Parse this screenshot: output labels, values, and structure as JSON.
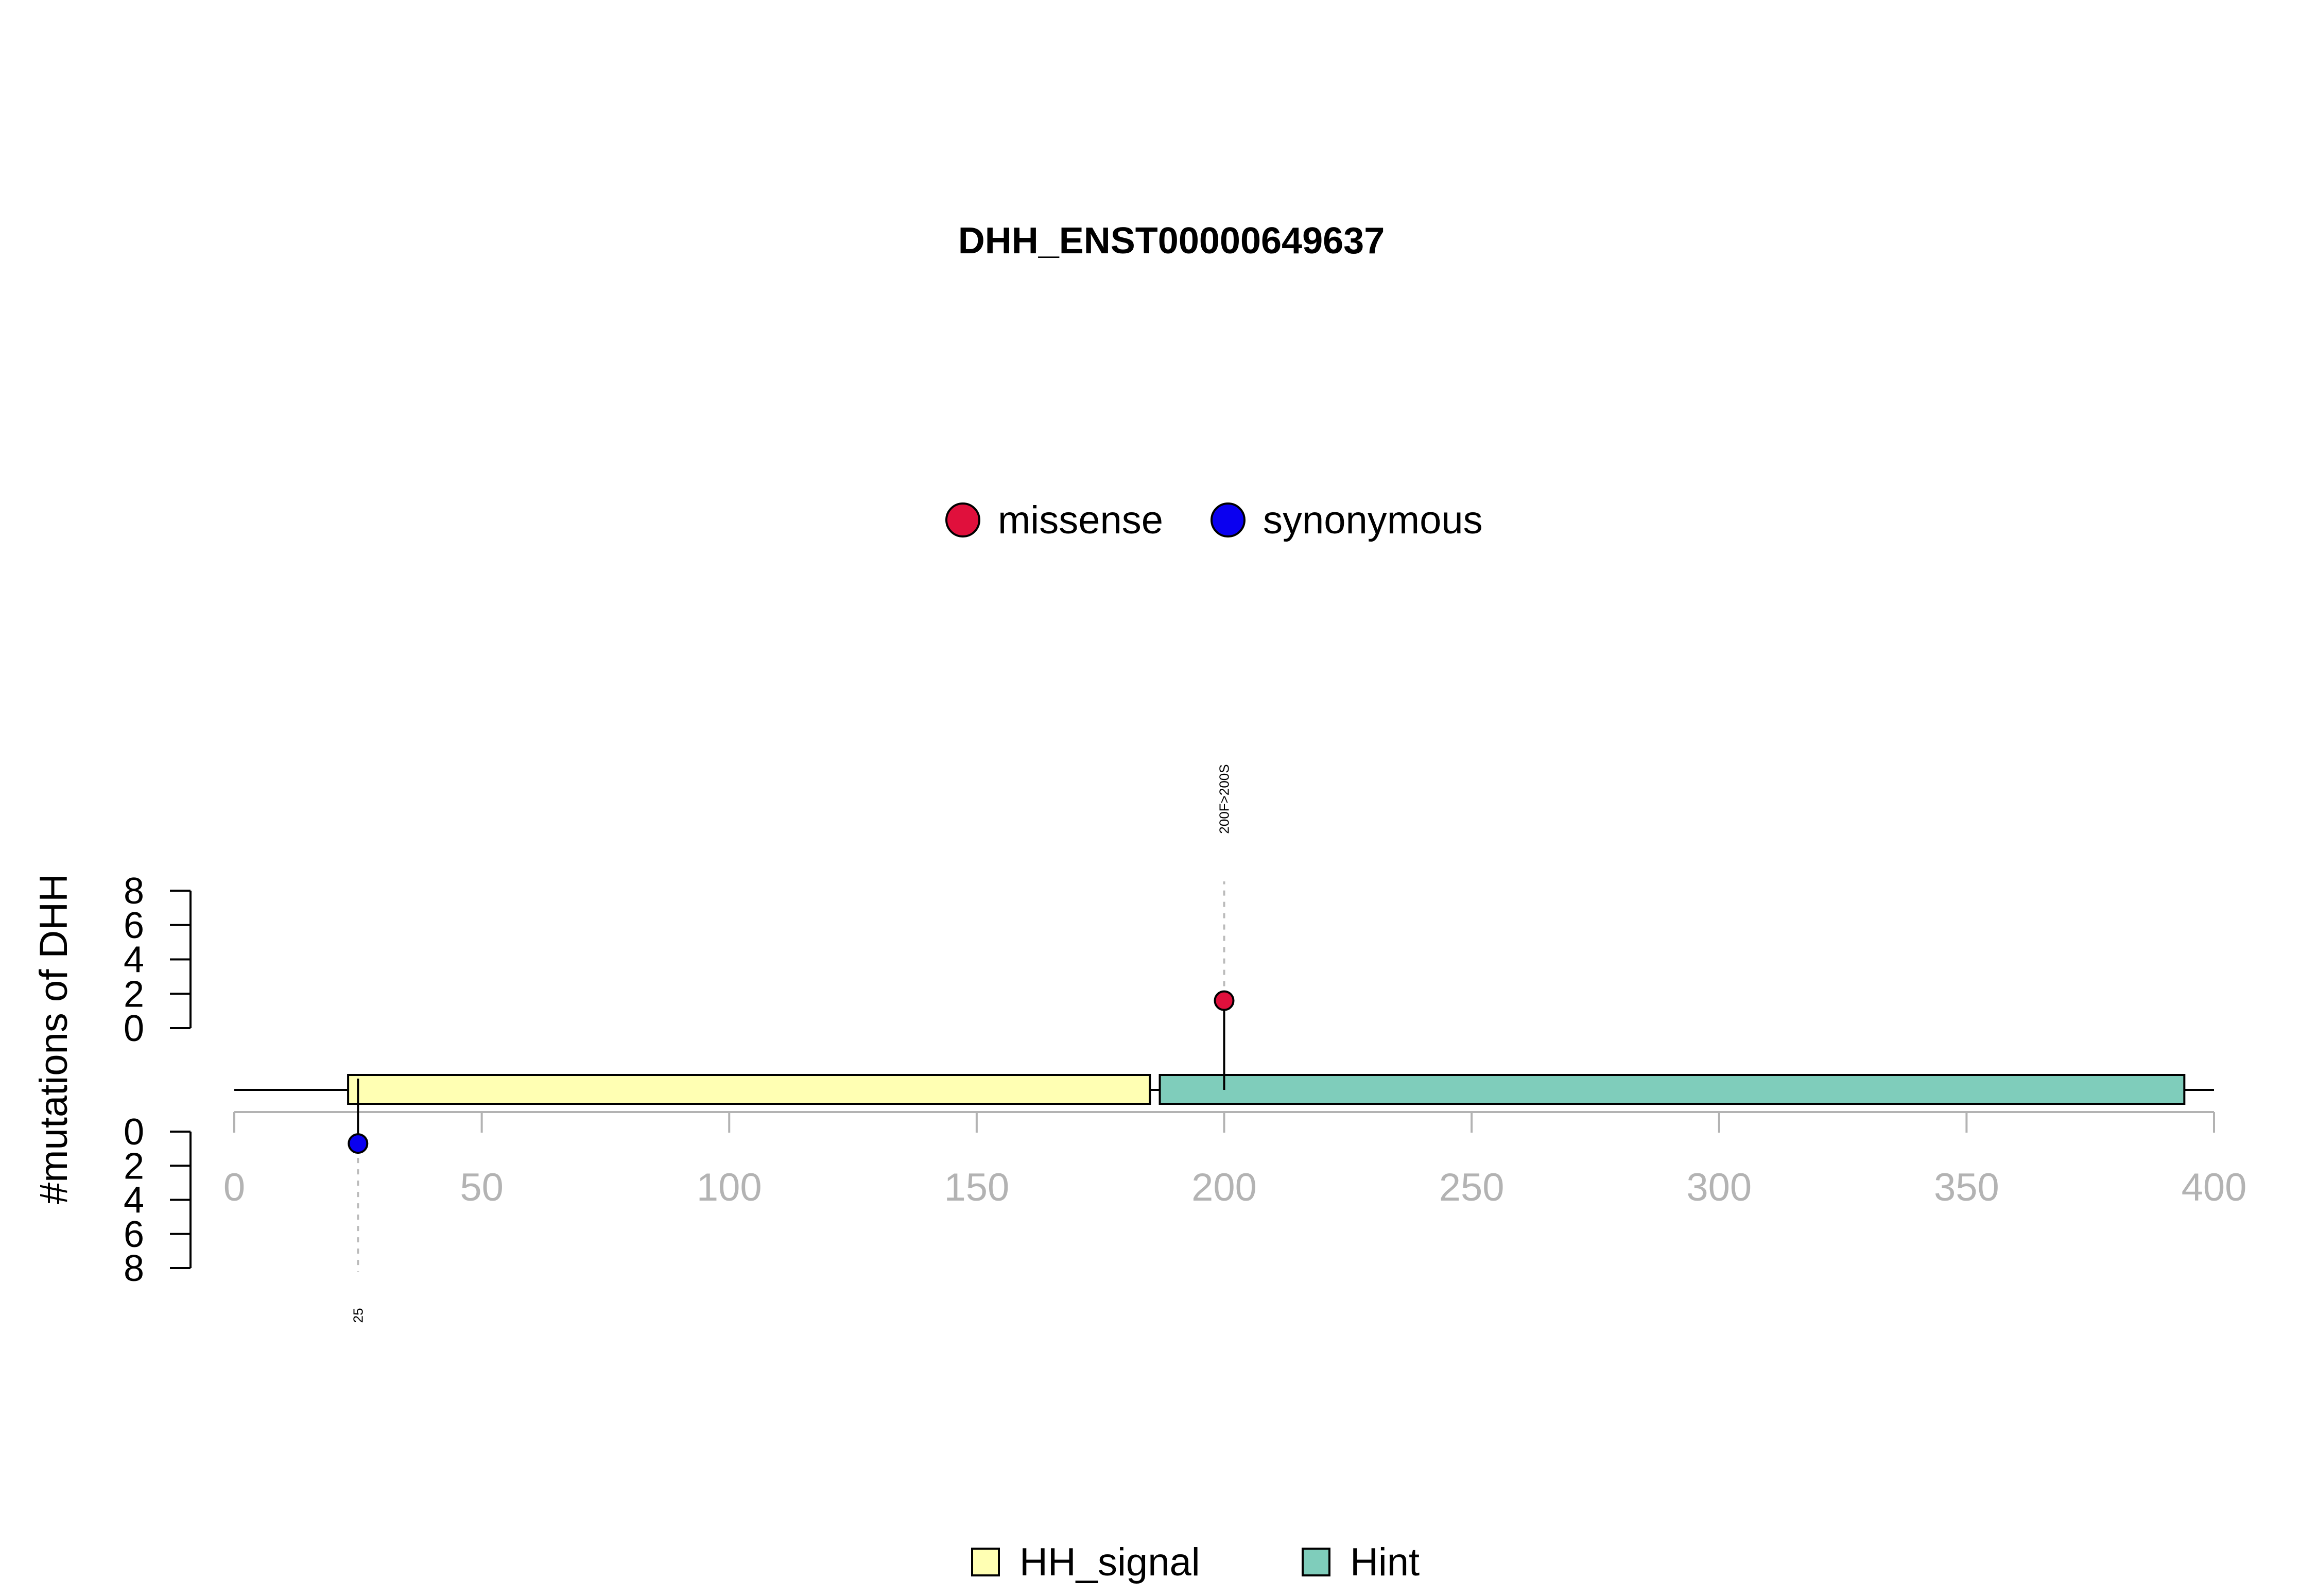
{
  "chart_data": {
    "type": "lollipop",
    "title": "DHH_ENST00000649637",
    "ylabel": "#mutations of DHH",
    "xlim": [
      0,
      400
    ],
    "x_ticks": [
      "0",
      "50",
      "100",
      "150",
      "200",
      "250",
      "300",
      "350",
      "400"
    ],
    "y_ticks": [
      "0",
      "2",
      "4",
      "6",
      "8"
    ],
    "ylim": [
      0,
      8
    ],
    "protein_length": 400,
    "mutation_legend": [
      {
        "name": "missense",
        "color": "#e0103c"
      },
      {
        "name": "synonymous",
        "color": "#0a00f0"
      }
    ],
    "mutations": [
      {
        "position": 200,
        "count": 1,
        "type": "missense",
        "label": "200F>200S",
        "side": "top",
        "color": "#e0103c"
      },
      {
        "position": 25,
        "count": 1,
        "type": "synonymous",
        "label": "25",
        "side": "bottom",
        "color": "#0a00f0"
      }
    ],
    "domains": [
      {
        "name": "HH_signal",
        "start": 23,
        "end": 185,
        "color": "#ffffb3"
      },
      {
        "name": "Hint",
        "start": 187,
        "end": 394,
        "color": "#7fcdbb"
      }
    ],
    "grid": false,
    "mutation_legend_position": "top-center",
    "domain_legend_position": "bottom-center"
  }
}
